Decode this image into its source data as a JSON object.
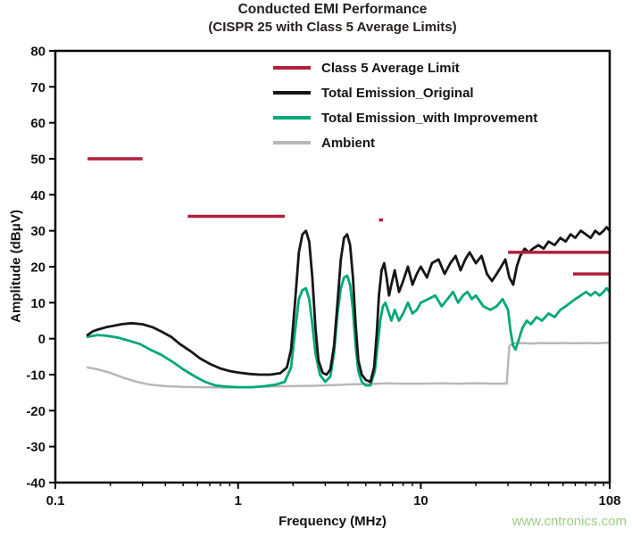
{
  "title": {
    "line1": "Conducted EMI Performance",
    "line2": "(CISPR 25 with Class 5 Average Limits)"
  },
  "watermark": "www.cntronics.com",
  "watermark_color": "#9bce84",
  "chart_data": {
    "type": "line",
    "title": "Conducted EMI Performance (CISPR 25 with Class 5 Average Limits)",
    "xlabel": "Frequency (MHz)",
    "ylabel": "Amplitude (dBμV)",
    "x_scale": "log",
    "x_range": [
      0.1,
      108
    ],
    "y_range": [
      -40,
      80
    ],
    "grid": false,
    "legend_position": "top-center-inside",
    "x_ticks": [
      {
        "value": 0.1,
        "label": "0.1"
      },
      {
        "value": 1,
        "label": "1"
      },
      {
        "value": 10,
        "label": "10"
      },
      {
        "value": 108,
        "label": "108"
      }
    ],
    "y_ticks": [
      -40,
      -30,
      -20,
      -10,
      0,
      10,
      20,
      30,
      40,
      50,
      60,
      70,
      80
    ],
    "axis_color": "#000000",
    "series": [
      {
        "name": "Class 5 Average Limit",
        "role": "limit",
        "color": "#b11f3d",
        "segments": [
          [
            0.15,
            0.3,
            50
          ],
          [
            0.53,
            1.8,
            34
          ],
          [
            5.9,
            6.2,
            33
          ],
          [
            30,
            108,
            24
          ],
          [
            68,
            108,
            18
          ]
        ]
      },
      {
        "name": "Total Emission_Original",
        "role": "original",
        "color": "#16161a",
        "points": [
          [
            0.15,
            1
          ],
          [
            0.16,
            2
          ],
          [
            0.17,
            2.5
          ],
          [
            0.19,
            3.2
          ],
          [
            0.21,
            3.6
          ],
          [
            0.23,
            4
          ],
          [
            0.26,
            4.3
          ],
          [
            0.3,
            4
          ],
          [
            0.34,
            3.2
          ],
          [
            0.38,
            2
          ],
          [
            0.43,
            0.5
          ],
          [
            0.48,
            -1.5
          ],
          [
            0.55,
            -3.5
          ],
          [
            0.62,
            -5.5
          ],
          [
            0.7,
            -7
          ],
          [
            0.8,
            -8.3
          ],
          [
            0.9,
            -9
          ],
          [
            1.0,
            -9.4
          ],
          [
            1.15,
            -9.8
          ],
          [
            1.3,
            -10
          ],
          [
            1.5,
            -10
          ],
          [
            1.7,
            -9.6
          ],
          [
            1.85,
            -8
          ],
          [
            1.95,
            -3
          ],
          [
            2.05,
            10
          ],
          [
            2.15,
            24
          ],
          [
            2.25,
            29
          ],
          [
            2.35,
            30
          ],
          [
            2.45,
            27
          ],
          [
            2.55,
            17
          ],
          [
            2.65,
            3
          ],
          [
            2.75,
            -6
          ],
          [
            2.9,
            -9.5
          ],
          [
            3.05,
            -10
          ],
          [
            3.2,
            -8.5
          ],
          [
            3.35,
            -2
          ],
          [
            3.5,
            10
          ],
          [
            3.65,
            22
          ],
          [
            3.8,
            28
          ],
          [
            3.95,
            29
          ],
          [
            4.1,
            26
          ],
          [
            4.25,
            17
          ],
          [
            4.4,
            4
          ],
          [
            4.55,
            -6
          ],
          [
            4.75,
            -10
          ],
          [
            5.0,
            -11.5
          ],
          [
            5.3,
            -12
          ],
          [
            5.55,
            -8
          ],
          [
            5.75,
            2
          ],
          [
            5.9,
            12
          ],
          [
            6.1,
            19
          ],
          [
            6.3,
            21
          ],
          [
            6.5,
            17
          ],
          [
            6.7,
            12
          ],
          [
            6.9,
            15
          ],
          [
            7.2,
            19
          ],
          [
            7.6,
            13
          ],
          [
            8.0,
            16
          ],
          [
            8.5,
            20
          ],
          [
            9.0,
            15
          ],
          [
            9.5,
            18
          ],
          [
            10,
            20
          ],
          [
            10.8,
            17
          ],
          [
            11.5,
            21
          ],
          [
            12.5,
            22
          ],
          [
            13.5,
            18
          ],
          [
            14.5,
            21
          ],
          [
            15.5,
            23
          ],
          [
            16.5,
            19
          ],
          [
            17.5,
            22
          ],
          [
            18.5,
            24
          ],
          [
            20,
            21
          ],
          [
            21.5,
            23
          ],
          [
            23,
            18
          ],
          [
            24.5,
            16
          ],
          [
            26,
            18
          ],
          [
            27.5,
            20
          ],
          [
            29,
            22
          ],
          [
            30.5,
            17
          ],
          [
            32,
            15
          ],
          [
            33.5,
            20
          ],
          [
            35,
            23
          ],
          [
            37,
            25
          ],
          [
            39,
            24
          ],
          [
            41,
            25
          ],
          [
            44,
            26
          ],
          [
            47,
            25
          ],
          [
            50,
            27
          ],
          [
            54,
            26
          ],
          [
            58,
            28
          ],
          [
            62,
            27
          ],
          [
            66,
            29
          ],
          [
            70,
            28
          ],
          [
            75,
            30
          ],
          [
            80,
            29
          ],
          [
            85,
            28
          ],
          [
            90,
            30
          ],
          [
            95,
            29
          ],
          [
            100,
            30
          ],
          [
            104,
            31
          ],
          [
            108,
            30
          ]
        ]
      },
      {
        "name": "Total Emission_with Improvement",
        "role": "improved",
        "color": "#00a878",
        "points": [
          [
            0.15,
            0.5
          ],
          [
            0.17,
            1
          ],
          [
            0.19,
            0.8
          ],
          [
            0.22,
            0.3
          ],
          [
            0.25,
            -0.5
          ],
          [
            0.29,
            -1.5
          ],
          [
            0.33,
            -3
          ],
          [
            0.38,
            -4.5
          ],
          [
            0.44,
            -6.5
          ],
          [
            0.5,
            -8.5
          ],
          [
            0.58,
            -10.5
          ],
          [
            0.66,
            -12
          ],
          [
            0.75,
            -13
          ],
          [
            0.85,
            -13.3
          ],
          [
            1.0,
            -13.5
          ],
          [
            1.2,
            -13.5
          ],
          [
            1.4,
            -13.2
          ],
          [
            1.6,
            -12.8
          ],
          [
            1.8,
            -12
          ],
          [
            1.95,
            -8
          ],
          [
            2.05,
            2
          ],
          [
            2.15,
            11
          ],
          [
            2.25,
            13.5
          ],
          [
            2.35,
            14
          ],
          [
            2.45,
            11
          ],
          [
            2.55,
            4
          ],
          [
            2.65,
            -4
          ],
          [
            2.8,
            -10
          ],
          [
            3.0,
            -12
          ],
          [
            3.2,
            -10.5
          ],
          [
            3.35,
            -4
          ],
          [
            3.5,
            7
          ],
          [
            3.65,
            14
          ],
          [
            3.8,
            17
          ],
          [
            3.95,
            17.5
          ],
          [
            4.1,
            15
          ],
          [
            4.25,
            8
          ],
          [
            4.4,
            -2
          ],
          [
            4.55,
            -9
          ],
          [
            4.75,
            -12
          ],
          [
            5.0,
            -13
          ],
          [
            5.3,
            -13
          ],
          [
            5.6,
            -9
          ],
          [
            5.8,
            -2
          ],
          [
            6.0,
            5
          ],
          [
            6.2,
            9
          ],
          [
            6.4,
            10
          ],
          [
            6.6,
            8
          ],
          [
            6.9,
            5
          ],
          [
            7.2,
            8
          ],
          [
            7.6,
            5
          ],
          [
            8.0,
            7
          ],
          [
            8.5,
            10
          ],
          [
            9.0,
            7
          ],
          [
            9.5,
            8
          ],
          [
            10,
            10
          ],
          [
            11,
            11
          ],
          [
            12,
            12
          ],
          [
            13,
            9
          ],
          [
            14,
            11
          ],
          [
            15,
            13
          ],
          [
            16,
            10
          ],
          [
            17,
            12
          ],
          [
            18,
            13
          ],
          [
            19,
            11
          ],
          [
            20,
            12
          ],
          [
            22,
            9
          ],
          [
            24,
            8
          ],
          [
            26,
            9
          ],
          [
            28,
            11
          ],
          [
            30,
            8
          ],
          [
            31,
            2
          ],
          [
            32,
            -2
          ],
          [
            33,
            -3
          ],
          [
            34,
            -1
          ],
          [
            36,
            3
          ],
          [
            38,
            5
          ],
          [
            40,
            4
          ],
          [
            43,
            6
          ],
          [
            46,
            5
          ],
          [
            50,
            7
          ],
          [
            54,
            6
          ],
          [
            58,
            8
          ],
          [
            62,
            9
          ],
          [
            66,
            10
          ],
          [
            70,
            11
          ],
          [
            75,
            12
          ],
          [
            80,
            13
          ],
          [
            85,
            12
          ],
          [
            90,
            13
          ],
          [
            95,
            12
          ],
          [
            100,
            13
          ],
          [
            104,
            14
          ],
          [
            108,
            13
          ]
        ]
      },
      {
        "name": "Ambient",
        "role": "ambient",
        "color": "#b8b8b8",
        "points": [
          [
            0.15,
            -8
          ],
          [
            0.17,
            -8.5
          ],
          [
            0.2,
            -9.5
          ],
          [
            0.24,
            -11
          ],
          [
            0.28,
            -12
          ],
          [
            0.33,
            -12.8
          ],
          [
            0.4,
            -13.2
          ],
          [
            0.5,
            -13.4
          ],
          [
            0.65,
            -13.5
          ],
          [
            0.85,
            -13.6
          ],
          [
            1.1,
            -13.5
          ],
          [
            1.5,
            -13.3
          ],
          [
            2.0,
            -13.2
          ],
          [
            2.6,
            -13.1
          ],
          [
            3.3,
            -12.9
          ],
          [
            4.2,
            -12.7
          ],
          [
            5.3,
            -12.6
          ],
          [
            6.5,
            -12.4
          ],
          [
            8.0,
            -12.5
          ],
          [
            10,
            -12.5
          ],
          [
            13,
            -12.4
          ],
          [
            16,
            -12.5
          ],
          [
            20,
            -12.4
          ],
          [
            25,
            -12.5
          ],
          [
            29.5,
            -12.5
          ],
          [
            30.5,
            -2
          ],
          [
            32,
            -1.3
          ],
          [
            36,
            -1.2
          ],
          [
            40,
            -1.4
          ],
          [
            46,
            -1.2
          ],
          [
            52,
            -1.3
          ],
          [
            60,
            -1.2
          ],
          [
            70,
            -1.3
          ],
          [
            80,
            -1.2
          ],
          [
            90,
            -1.3
          ],
          [
            100,
            -1.2
          ],
          [
            108,
            -1.1
          ]
        ]
      }
    ]
  }
}
